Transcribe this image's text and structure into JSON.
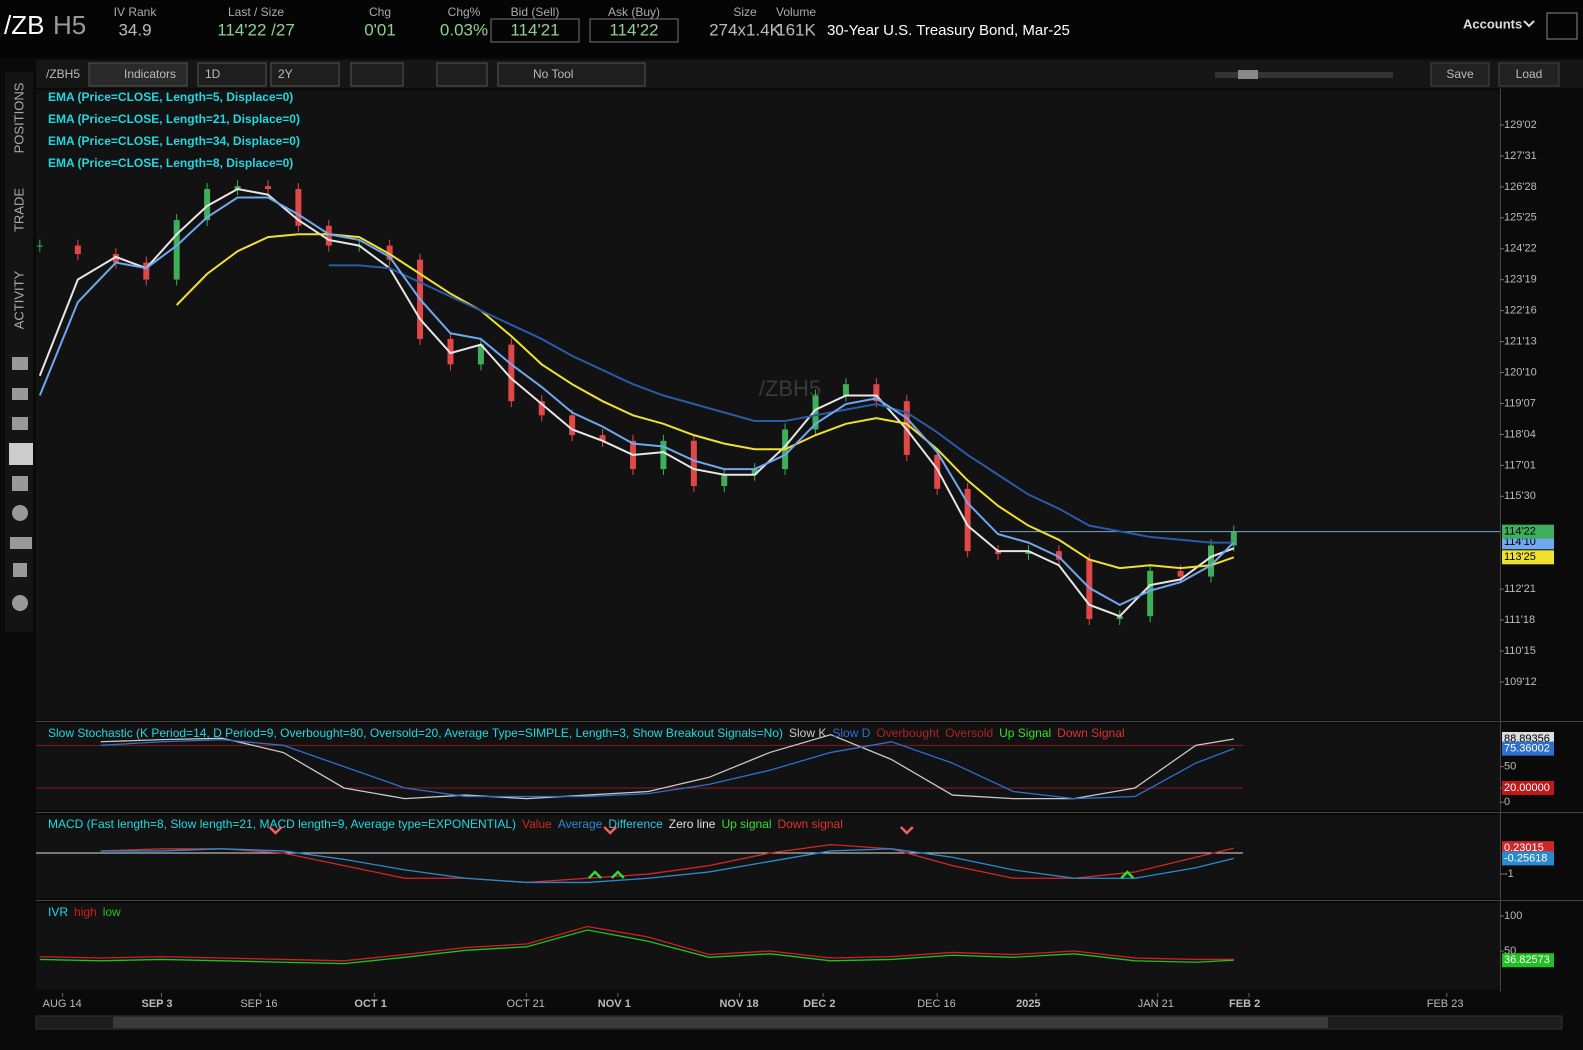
{
  "header": {
    "symbol_root": "/ZB",
    "symbol_suffix": "H5",
    "fields": [
      {
        "label": "IV Rank",
        "value": "34.9"
      },
      {
        "label": "Last / Size",
        "value": "114'22 /27"
      },
      {
        "label": "Chg",
        "value": "0'01"
      },
      {
        "label": "Chg%",
        "value": "0.03%"
      },
      {
        "label": "Bid (Sell)",
        "value": "114'21"
      },
      {
        "label": "Ask (Buy)",
        "value": "114'22"
      },
      {
        "label": "Size",
        "value": "274x1.4K"
      },
      {
        "label": "Volume",
        "value": "161K"
      }
    ],
    "description": "30-Year U.S. Treasury Bond, Mar-25",
    "accounts": "Accounts"
  },
  "toolbar": {
    "symbol": "/ZBH5",
    "indicators": "Indicators",
    "aggregation": "1D",
    "range": "2Y",
    "tool": "No Tool",
    "save": "Save",
    "load": "Load"
  },
  "sidebar": {
    "tabs": [
      "POSITIONS",
      "TRADE",
      "ACTIVITY"
    ]
  },
  "chart_data": [
    {
      "type": "candlestick",
      "watermark": "/ZBH5",
      "up_color": "#3fae5a",
      "down_color": "#e04848",
      "xlim": [
        -0.5,
        192
      ],
      "ylim": [
        108.03,
        130.3
      ],
      "xticks": [
        {
          "value": 3,
          "label": "AUG 14"
        },
        {
          "value": 16,
          "label": "SEP 3"
        },
        {
          "value": 29,
          "label": "SEP 16"
        },
        {
          "value": 44,
          "label": "OCT 1"
        },
        {
          "value": 64,
          "label": "OCT 21"
        },
        {
          "value": 76,
          "label": "NOV 1"
        },
        {
          "value": 92,
          "label": "NOV 18"
        },
        {
          "value": 103,
          "label": "DEC 2"
        },
        {
          "value": 118,
          "label": "DEC 16"
        },
        {
          "value": 131,
          "label": "2025"
        },
        {
          "value": 147,
          "label": "JAN 21"
        },
        {
          "value": 159,
          "label": "FEB 2"
        },
        {
          "value": 185,
          "label": "FEB 23"
        }
      ],
      "yticks": [
        {
          "value": 129.0625,
          "label": "129'02"
        },
        {
          "value": 127.96875,
          "label": "127'31"
        },
        {
          "value": 126.875,
          "label": "126'28"
        },
        {
          "value": 125.78125,
          "label": "125'25"
        },
        {
          "value": 124.6875,
          "label": "124'22"
        },
        {
          "value": 123.59375,
          "label": "123'19"
        },
        {
          "value": 122.5,
          "label": "122'16"
        },
        {
          "value": 121.40625,
          "label": "121'13"
        },
        {
          "value": 120.3125,
          "label": "120'10"
        },
        {
          "value": 119.21875,
          "label": "119'07"
        },
        {
          "value": 118.125,
          "label": "118'04"
        },
        {
          "value": 117.03125,
          "label": "117'01"
        },
        {
          "value": 115.9375,
          "label": "115'30"
        },
        {
          "value": 112.65625,
          "label": "112'21"
        },
        {
          "value": 111.5625,
          "label": "111'18"
        },
        {
          "value": 110.46875,
          "label": "110'15"
        },
        {
          "value": 109.375,
          "label": "109'12"
        }
      ],
      "x": [
        0,
        5,
        10,
        14,
        18,
        22,
        26,
        30,
        34,
        38,
        42,
        46,
        50,
        54,
        58,
        62,
        66,
        70,
        74,
        78,
        82,
        86,
        90,
        94,
        98,
        102,
        106,
        110,
        114,
        118,
        122,
        126,
        130,
        134,
        138,
        142,
        146,
        150,
        154,
        157
      ],
      "close": [
        124.8,
        124.5,
        124.2,
        123.6,
        125.7,
        126.8,
        126.9,
        126.8,
        125.5,
        124.8,
        124.8,
        124.3,
        121.5,
        120.6,
        121.3,
        119.3,
        118.8,
        118.1,
        117.9,
        116.9,
        117.9,
        116.3,
        116.7,
        116.9,
        118.3,
        119.5,
        119.9,
        119.3,
        117.4,
        116.2,
        114.0,
        113.9,
        114.0,
        113.7,
        111.6,
        111.7,
        113.3,
        113.1,
        114.2,
        114.6875
      ],
      "value_labels": [
        null,
        null,
        null,
        null,
        null,
        null,
        null,
        null,
        null,
        null,
        null,
        null,
        null,
        null,
        null,
        null,
        null,
        null,
        null,
        null,
        null,
        null,
        null,
        null,
        null,
        null,
        null,
        null,
        null,
        null,
        null,
        null,
        null,
        null,
        null,
        null,
        null,
        null,
        null,
        "114'22"
      ],
      "series": [
        {
          "name": "EMA (Price=CLOSE, Length=5, Displace=0)",
          "color": "#e6e6e6",
          "values": [
            120.2,
            123.6,
            124.4,
            124.0,
            125.2,
            126.2,
            126.8,
            126.6,
            125.7,
            125.0,
            124.8,
            124.0,
            122.2,
            121.0,
            121.3,
            120.1,
            119.2,
            118.3,
            117.9,
            117.4,
            117.5,
            116.9,
            116.7,
            116.7,
            117.7,
            119.0,
            119.5,
            119.5,
            118.3,
            116.9,
            114.9,
            114.0,
            114.0,
            113.5,
            112.1,
            111.7,
            112.8,
            113.0,
            113.8,
            114.1
          ]
        },
        {
          "name": "EMA (Price=CLOSE, Length=21, Displace=0)",
          "color": "#f0e030",
          "values": [
            null,
            null,
            null,
            null,
            122.7,
            123.8,
            124.6,
            125.1,
            125.2,
            125.2,
            125.1,
            124.5,
            123.8,
            123.1,
            122.5,
            121.6,
            120.6,
            119.9,
            119.3,
            118.8,
            118.5,
            118.1,
            117.8,
            117.6,
            117.6,
            118.1,
            118.5,
            118.7,
            118.5,
            117.6,
            116.5,
            115.6,
            114.9,
            114.4,
            113.7,
            113.4,
            113.5,
            113.4,
            113.5,
            113.78125
          ],
          "value_labels": [
            null,
            null,
            null,
            null,
            null,
            null,
            null,
            null,
            null,
            null,
            null,
            null,
            null,
            null,
            null,
            null,
            null,
            null,
            null,
            null,
            null,
            null,
            null,
            null,
            null,
            null,
            null,
            null,
            null,
            null,
            null,
            null,
            null,
            null,
            null,
            null,
            null,
            null,
            null,
            "113'25"
          ]
        },
        {
          "name": "EMA (Price=CLOSE, Length=34, Displace=0)",
          "color": "#2a5aa8",
          "values": [
            null,
            null,
            null,
            null,
            null,
            null,
            null,
            null,
            null,
            124.1,
            124.1,
            124.0,
            123.5,
            123.0,
            122.5,
            122.0,
            121.5,
            120.9,
            120.4,
            119.9,
            119.5,
            119.2,
            118.9,
            118.6,
            118.6,
            118.8,
            119.0,
            119.2,
            118.9,
            118.2,
            117.4,
            116.7,
            116.0,
            115.5,
            114.9,
            114.7,
            114.5,
            114.4,
            114.3,
            114.3
          ]
        },
        {
          "name": "EMA (Price=CLOSE, Length=8, Displace=0)",
          "color": "#6fa8f0",
          "values": [
            119.5,
            122.8,
            124.2,
            124.0,
            124.8,
            125.8,
            126.5,
            126.5,
            125.9,
            125.2,
            125.0,
            124.4,
            122.9,
            121.7,
            121.5,
            120.6,
            119.8,
            118.9,
            118.4,
            117.8,
            117.7,
            117.2,
            116.9,
            116.9,
            117.4,
            118.5,
            119.2,
            119.4,
            118.7,
            117.5,
            115.7,
            114.6,
            114.3,
            113.8,
            112.7,
            112.1,
            112.6,
            112.9,
            113.5,
            114.3125
          ],
          "value_labels": [
            null,
            null,
            null,
            null,
            null,
            null,
            null,
            null,
            null,
            null,
            null,
            null,
            null,
            null,
            null,
            null,
            null,
            null,
            null,
            null,
            null,
            null,
            null,
            null,
            null,
            null,
            null,
            null,
            null,
            null,
            null,
            null,
            null,
            null,
            null,
            null,
            null,
            null,
            null,
            "114'10"
          ]
        }
      ]
    },
    {
      "type": "line",
      "title": "Slow Stochastic (K Period=14, D Period=9, Overbought=80, Oversold=20, Average Type=SIMPLE, Length=3, Show Breakout Signals=No)",
      "xlim": [
        -0.5,
        192
      ],
      "ylim": [
        -11,
        110
      ],
      "yticks": [
        0,
        {
          "value": 20,
          "label": "20.00000"
        },
        50
      ],
      "levels": [
        80,
        20
      ],
      "level_color": "#8a1a1a",
      "x": [
        8,
        16,
        24,
        32,
        40,
        48,
        56,
        64,
        72,
        80,
        88,
        96,
        104,
        112,
        120,
        128,
        136,
        144,
        152,
        157
      ],
      "series": [
        {
          "name": "Slow K",
          "color": "#c8c8c8",
          "values": [
            85,
            88,
            90,
            70,
            20,
            5,
            10,
            5,
            10,
            15,
            35,
            70,
            95,
            60,
            10,
            5,
            5,
            20,
            80,
            88.89356
          ]
        },
        {
          "name": "Slow D",
          "color": "#2f6fd0",
          "values": [
            80,
            85,
            88,
            80,
            50,
            20,
            8,
            8,
            8,
            12,
            25,
            45,
            70,
            85,
            55,
            15,
            5,
            8,
            55,
            75.36002
          ]
        }
      ],
      "legend_extra": [
        {
          "name": "Overbought",
          "color": "#b02020"
        },
        {
          "name": "Oversold",
          "color": "#b02020"
        },
        {
          "name": "Up Signal",
          "color": "#30e030"
        },
        {
          "name": "Down Signal",
          "color": "#e03030"
        }
      ]
    },
    {
      "type": "line",
      "title": "MACD (Fast length=8, Slow length=21, MACD length=9, Average type=EXPONENTIAL)",
      "xlim": [
        -0.5,
        192
      ],
      "ylim": [
        -2.14,
        1.81
      ],
      "yticks": [
        -1
      ],
      "zero_line": true,
      "x": [
        8,
        16,
        24,
        32,
        40,
        48,
        56,
        64,
        72,
        80,
        88,
        96,
        104,
        112,
        120,
        128,
        136,
        144,
        152,
        157
      ],
      "series": [
        {
          "name": "Value",
          "color": "#d02828",
          "values": [
            0.1,
            0.2,
            0.2,
            0,
            -0.6,
            -1.2,
            -1.2,
            -1.4,
            -1.2,
            -1.0,
            -0.6,
            0,
            0.4,
            0.2,
            -0.6,
            -1.2,
            -1.2,
            -0.9,
            -0.2,
            0.23015
          ]
        },
        {
          "name": "Average",
          "color": "#2a8ad0",
          "values": [
            0.1,
            0.1,
            0.2,
            0.1,
            -0.3,
            -0.8,
            -1.2,
            -1.4,
            -1.4,
            -1.2,
            -0.9,
            -0.4,
            0.1,
            0.2,
            -0.2,
            -0.8,
            -1.2,
            -1.2,
            -0.7,
            -0.25618
          ]
        }
      ],
      "legend_extra": [
        {
          "name": "Difference",
          "color": "#30c8e0"
        },
        {
          "name": "Zero line",
          "color": "#e0e0e0"
        },
        {
          "name": "Up signal",
          "color": "#30e030"
        },
        {
          "name": "Down signal",
          "color": "#e03030"
        }
      ],
      "up_signals": [
        73,
        76,
        143
      ],
      "down_signals": [
        31,
        75,
        114
      ]
    },
    {
      "type": "line",
      "title": "IVR",
      "xlim": [
        -0.5,
        192
      ],
      "ylim": [
        -5.7,
        118.6
      ],
      "yticks": [
        100,
        50
      ],
      "x": [
        0,
        8,
        16,
        24,
        32,
        40,
        48,
        56,
        64,
        72,
        80,
        88,
        96,
        104,
        112,
        120,
        128,
        136,
        144,
        152,
        157
      ],
      "series": [
        {
          "name": "high",
          "color": "#d02020",
          "values": [
            42,
            40,
            42,
            40,
            38,
            36,
            45,
            55,
            60,
            85,
            70,
            45,
            50,
            40,
            42,
            48,
            45,
            50,
            40,
            38,
            38
          ]
        },
        {
          "name": "low",
          "color": "#20c020",
          "values": [
            38,
            36,
            38,
            36,
            34,
            32,
            41,
            51,
            56,
            80,
            64,
            41,
            46,
            36,
            38,
            44,
            41,
            46,
            36,
            34,
            36.82573
          ]
        }
      ]
    }
  ]
}
